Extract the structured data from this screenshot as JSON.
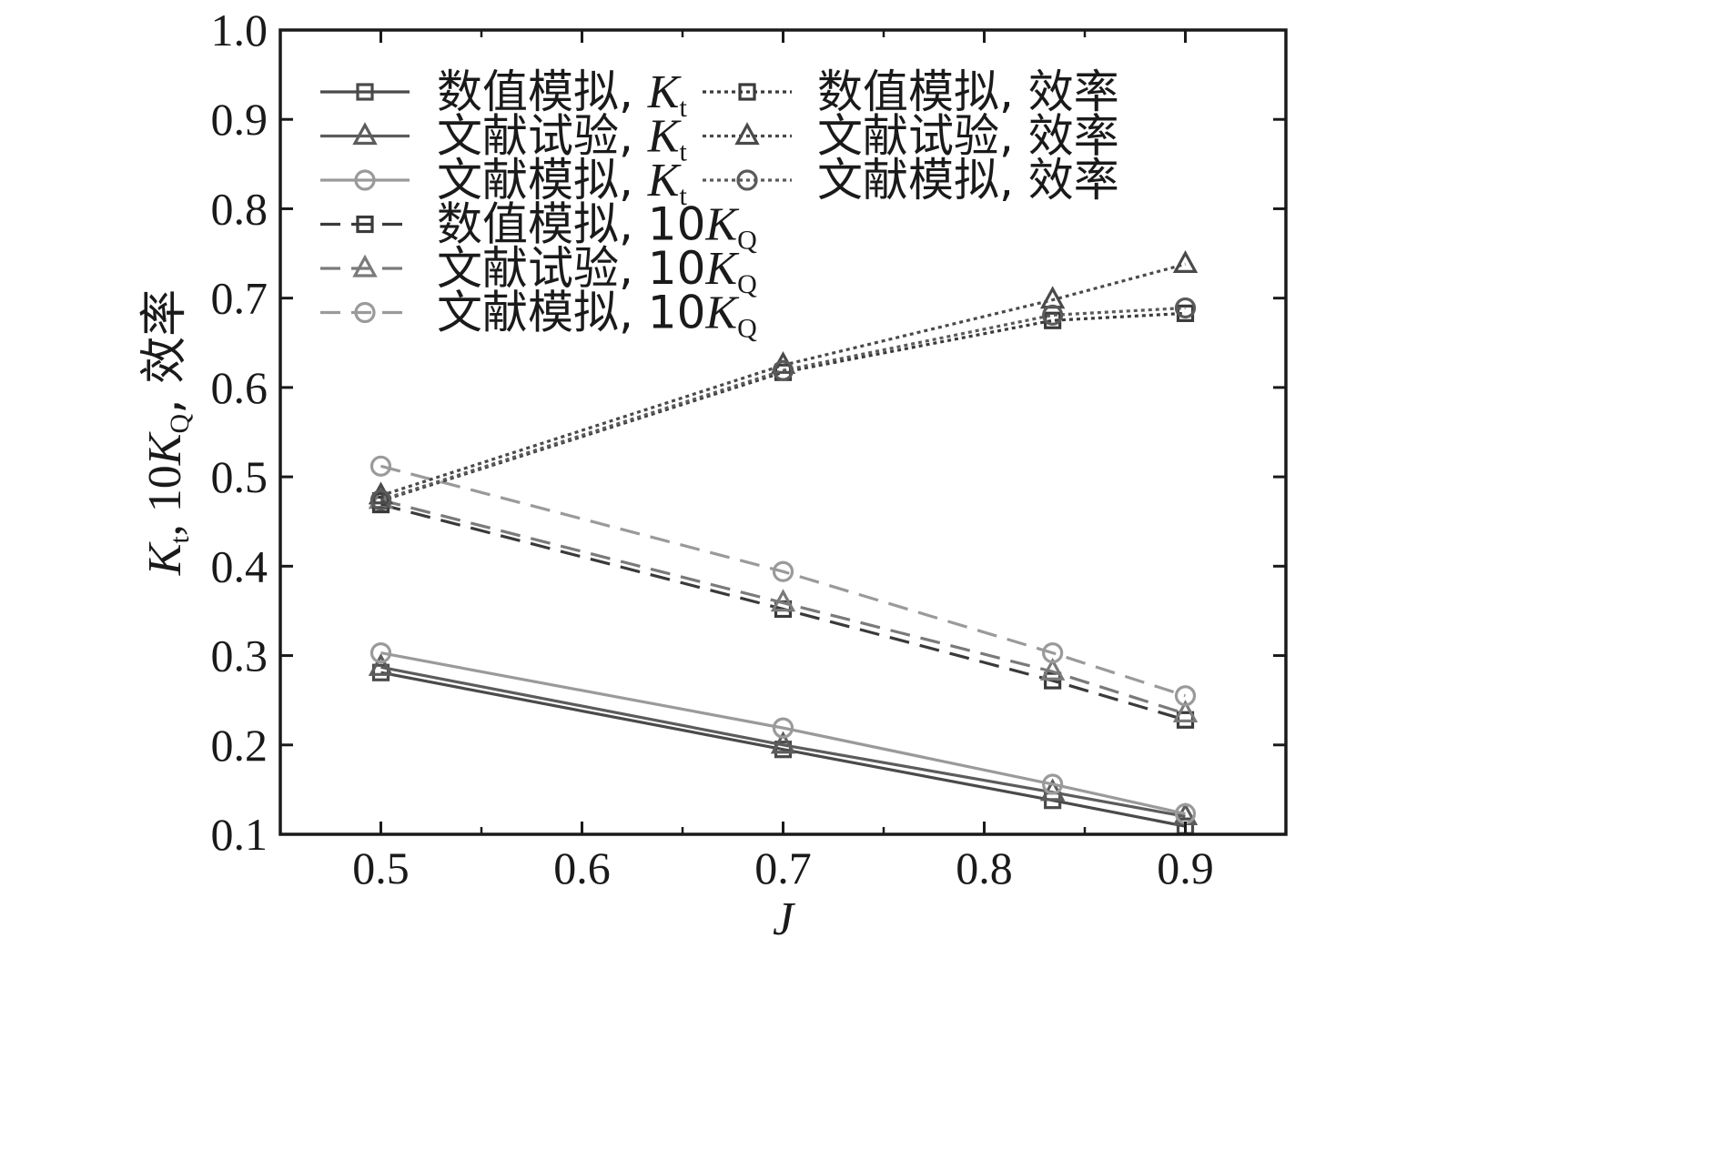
{
  "chart_data": {
    "type": "line",
    "xlabel": "J",
    "ylabel": {
      "k": "K",
      "k_sub": "t",
      "mid": ", 10",
      "kq": "K",
      "kq_sub": "Q",
      "tail": ", 效率"
    },
    "xlim": [
      0.45,
      0.95
    ],
    "ylim": [
      0.1,
      1.0
    ],
    "xticks": [
      0.5,
      0.6,
      0.7,
      0.8,
      0.9
    ],
    "xtick_labels": [
      "0.5",
      "0.6",
      "0.7",
      "0.8",
      "0.9"
    ],
    "yticks": [
      0.1,
      0.2,
      0.3,
      0.4,
      0.5,
      0.6,
      0.7,
      0.8,
      0.9,
      1.0
    ],
    "ytick_labels": [
      "0.1",
      "0.2",
      "0.3",
      "0.4",
      "0.5",
      "0.6",
      "0.7",
      "0.8",
      "0.9",
      "1.0"
    ],
    "legend_position": "top-left, two columns",
    "series": [
      {
        "name": "数值模拟, Kt",
        "label": "数值模拟, ",
        "sym": "K",
        "sub": "t",
        "line": "solid",
        "marker": "square",
        "color": "#4a4a4a",
        "x": [
          0.5,
          0.7,
          0.834,
          0.9
        ],
        "y": [
          0.281,
          0.195,
          0.138,
          0.109
        ]
      },
      {
        "name": "文献试验, Kt",
        "label": "文献试验, ",
        "sym": "K",
        "sub": "t",
        "line": "solid",
        "marker": "triangle",
        "color": "#5c5c5c",
        "x": [
          0.5,
          0.7,
          0.834,
          0.9
        ],
        "y": [
          0.287,
          0.2,
          0.147,
          0.12
        ]
      },
      {
        "name": "文献模拟, Kt",
        "label": "文献模拟, ",
        "sym": "K",
        "sub": "t",
        "line": "solid",
        "marker": "circle",
        "color": "#9a9a9a",
        "x": [
          0.5,
          0.7,
          0.834,
          0.9
        ],
        "y": [
          0.303,
          0.219,
          0.156,
          0.123
        ]
      },
      {
        "name": "数值模拟, 10KQ",
        "label": "数值模拟, 10",
        "sym": "K",
        "sub": "Q",
        "line": "dashed",
        "marker": "square",
        "color": "#3a3a3a",
        "x": [
          0.5,
          0.7,
          0.834,
          0.9
        ],
        "y": [
          0.469,
          0.352,
          0.272,
          0.228
        ]
      },
      {
        "name": "文献试验, 10KQ",
        "label": "文献试验, 10",
        "sym": "K",
        "sub": "Q",
        "line": "dashed",
        "marker": "triangle",
        "color": "#7a7a7a",
        "x": [
          0.5,
          0.7,
          0.834,
          0.9
        ],
        "y": [
          0.474,
          0.359,
          0.282,
          0.235
        ]
      },
      {
        "name": "文献模拟, 10KQ",
        "label": "文献模拟, 10",
        "sym": "K",
        "sub": "Q",
        "line": "dashed",
        "marker": "circle",
        "color": "#9a9a9a",
        "x": [
          0.5,
          0.7,
          0.834,
          0.9
        ],
        "y": [
          0.512,
          0.394,
          0.303,
          0.255
        ]
      },
      {
        "name": "数值模拟, 效率",
        "label": "数值模拟, 效率",
        "sym": "",
        "sub": "",
        "line": "dotted",
        "marker": "square",
        "color": "#3a3a3a",
        "x": [
          0.5,
          0.7,
          0.834,
          0.9
        ],
        "y": [
          0.473,
          0.617,
          0.675,
          0.683
        ]
      },
      {
        "name": "文献试验, 效率",
        "label": "文献试验, 效率",
        "sym": "",
        "sub": "",
        "line": "dotted",
        "marker": "triangle",
        "color": "#4a4a4a",
        "x": [
          0.5,
          0.7,
          0.834,
          0.9
        ],
        "y": [
          0.479,
          0.625,
          0.698,
          0.738
        ]
      },
      {
        "name": "文献模拟, 效率",
        "label": "文献模拟, 效率",
        "sym": "",
        "sub": "",
        "line": "dotted",
        "marker": "circle",
        "color": "#5a5a5a",
        "x": [
          0.5,
          0.7,
          0.834,
          0.9
        ],
        "y": [
          0.474,
          0.619,
          0.681,
          0.689
        ]
      }
    ]
  }
}
